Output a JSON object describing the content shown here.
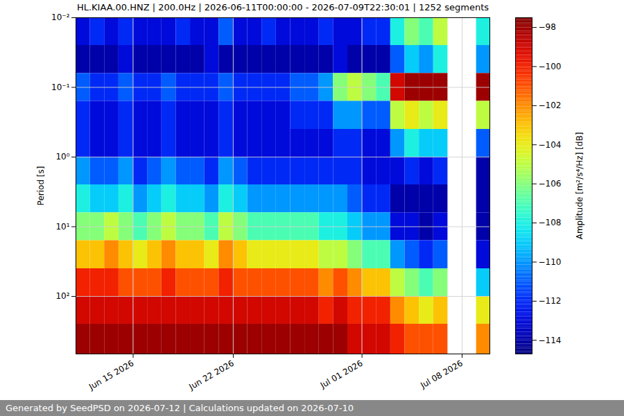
{
  "chart_data": {
    "type": "heatmap",
    "title": "HL.KIAA.00.HNZ | 200.0Hz | 2026-06-11T00:00:00 - 2026-07-09T22:30:01 | 1252 segments",
    "footer": "Generated by SeedPSD on 2026-07-12 | Calculations updated on 2026-07-10",
    "y_label": "Period [s]",
    "log": "y",
    "grid": true,
    "xlim": [
      "2026-06-11T00:00:00",
      "2026-07-09T22:30:01"
    ],
    "ylim": [
      0.01,
      670
    ],
    "xticks": [
      {
        "value": "2026-06-15",
        "label": "Jun 15 2026"
      },
      {
        "value": "2026-06-22",
        "label": "Jun 22 2026"
      },
      {
        "value": "2026-07-01",
        "label": "Jul 01 2026"
      },
      {
        "value": "2026-07-08",
        "label": "Jul 08 2026"
      }
    ],
    "yticks": [
      {
        "value": 0.01,
        "label": "10⁻²"
      },
      {
        "value": 0.1,
        "label": "10⁻¹"
      },
      {
        "value": 1,
        "label": "10⁰"
      },
      {
        "value": 10,
        "label": "10¹"
      },
      {
        "value": 100,
        "label": "10²"
      }
    ],
    "x_edges": [
      "2026-06-11",
      "2026-06-12",
      "2026-06-13",
      "2026-06-14",
      "2026-06-15",
      "2026-06-16",
      "2026-06-17",
      "2026-06-18",
      "2026-06-19",
      "2026-06-20",
      "2026-06-21",
      "2026-06-22",
      "2026-06-23",
      "2026-06-24",
      "2026-06-25",
      "2026-06-26",
      "2026-06-27",
      "2026-06-28",
      "2026-06-29",
      "2026-06-30",
      "2026-07-01",
      "2026-07-02",
      "2026-07-03",
      "2026-07-04",
      "2026-07-05",
      "2026-07-06",
      "2026-07-07",
      "2026-07-08",
      "2026-07-09",
      "2026-07-09T22:30:01"
    ],
    "y_edges": [
      0.01,
      0.025,
      0.063,
      0.158,
      0.4,
      1,
      2.5,
      6.3,
      15.8,
      40,
      100,
      250,
      670
    ],
    "cells": [
      [
        -113,
        -112,
        -113,
        -112,
        -113,
        -113,
        -113,
        -112,
        -113,
        -113,
        -111,
        -113,
        -113,
        -112,
        -113,
        -113,
        -113,
        -112,
        -113,
        -113,
        -112,
        -112,
        -108,
        -106,
        -107,
        -105,
        null,
        null,
        -108
      ],
      [
        -114,
        -114,
        -114,
        -113,
        -114,
        -114,
        -114,
        -114,
        -114,
        -113,
        -114,
        -114,
        -114,
        -114,
        -114,
        -114,
        -114,
        -114,
        -113,
        -114,
        -114,
        -114,
        -111,
        -109,
        -110,
        -108,
        null,
        null,
        -110
      ],
      [
        -111,
        -112,
        -112,
        -111,
        -112,
        -112,
        -111,
        -112,
        -112,
        -112,
        -111,
        -112,
        -112,
        -112,
        -112,
        -111,
        -111,
        -110,
        -106,
        -105,
        -106,
        -107,
        -99,
        -98,
        -98,
        -98,
        null,
        null,
        -98
      ],
      [
        -112,
        -113,
        -113,
        -112,
        -113,
        -113,
        -112,
        -113,
        -113,
        -113,
        -112,
        -113,
        -113,
        -113,
        -113,
        -112,
        -112,
        -112,
        -110,
        -110,
        -111,
        -111,
        -105,
        -104,
        -105,
        -104,
        null,
        null,
        -105
      ],
      [
        -112,
        -113,
        -113,
        -112,
        -113,
        -113,
        -112,
        -113,
        -113,
        -113,
        -112,
        -113,
        -113,
        -113,
        -113,
        -113,
        -113,
        -113,
        -112,
        -112,
        -113,
        -113,
        -110,
        -108,
        -109,
        -109,
        null,
        null,
        -111
      ],
      [
        -110,
        -111,
        -111,
        -110,
        -112,
        -111,
        -110,
        -111,
        -111,
        -112,
        -110,
        -111,
        -112,
        -112,
        -112,
        -112,
        -112,
        -112,
        -112,
        -112,
        -113,
        -113,
        -113,
        -112,
        -113,
        -112,
        null,
        null,
        -114
      ],
      [
        -108,
        -109,
        -109,
        -108,
        -110,
        -109,
        -108,
        -109,
        -109,
        -110,
        -108,
        -109,
        -110,
        -110,
        -110,
        -110,
        -110,
        -110,
        -110,
        -111,
        -112,
        -112,
        -114,
        -114,
        -114,
        -114,
        null,
        null,
        -114
      ],
      [
        -106,
        -106,
        -105,
        -106,
        -107,
        -106,
        -105,
        -106,
        -106,
        -107,
        -105,
        -106,
        -107,
        -107,
        -107,
        -107,
        -107,
        -108,
        -108,
        -109,
        -110,
        -110,
        -113,
        -113,
        -114,
        -113,
        null,
        null,
        -114
      ],
      [
        -103,
        -103,
        -102,
        -103,
        -104,
        -103,
        -102,
        -103,
        -103,
        -104,
        -102,
        -103,
        -104,
        -104,
        -104,
        -104,
        -104,
        -105,
        -105,
        -106,
        -107,
        -107,
        -110,
        -111,
        -112,
        -111,
        null,
        null,
        -113
      ],
      [
        -100,
        -100,
        -100,
        -101,
        -101,
        -101,
        -100,
        -101,
        -101,
        -101,
        -100,
        -101,
        -101,
        -101,
        -101,
        -101,
        -101,
        -102,
        -101,
        -102,
        -103,
        -103,
        -105,
        -106,
        -107,
        -106,
        null,
        null,
        -109
      ],
      [
        -99,
        -99,
        -99,
        -99,
        -99,
        -99,
        -99,
        -99,
        -99,
        -99,
        -99,
        -99,
        -99,
        -99,
        -99,
        -99,
        -99,
        -100,
        -99,
        -100,
        -100,
        -100,
        -102,
        -103,
        -104,
        -103,
        null,
        null,
        -104
      ],
      [
        -98,
        -98,
        -98,
        -98,
        -98,
        -98,
        -98,
        -98,
        -98,
        -98,
        -98,
        -98,
        -98,
        -98,
        -98,
        -98,
        -98,
        -98,
        -98,
        -99,
        -99,
        -99,
        -100,
        -101,
        -101,
        -101,
        null,
        null,
        -102
      ]
    ],
    "colorbar": {
      "label": "Amplitude [m²/s⁴/Hz] [dB]",
      "range": [
        -114.7,
        -97.5
      ],
      "ticks": [
        -98,
        -100,
        -102,
        -104,
        -106,
        -108,
        -110,
        -112,
        -114
      ]
    }
  }
}
